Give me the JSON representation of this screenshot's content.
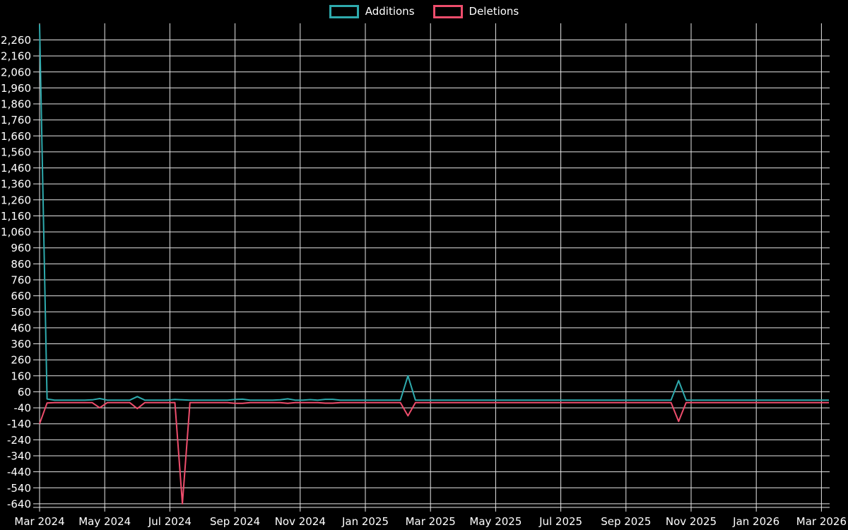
{
  "chart_data": {
    "type": "line",
    "title": "",
    "xlabel": "",
    "ylabel": "",
    "grid": true,
    "legend_position": "top-center",
    "legend": [
      {
        "label": "Additions",
        "color": "#2eaaad"
      },
      {
        "label": "Deletions",
        "color": "#ee4d6c"
      }
    ],
    "x_ticks": [
      "Mar 2024",
      "May 2024",
      "Jul 2024",
      "Sep 2024",
      "Nov 2024",
      "Jan 2025",
      "Mar 2025",
      "May 2025",
      "Jul 2025",
      "Sep 2025",
      "Nov 2025",
      "Jan 2026",
      "Mar 2026"
    ],
    "y_ticks": [
      2260,
      2160,
      2060,
      1960,
      1860,
      1760,
      1660,
      1560,
      1460,
      1360,
      1260,
      1160,
      1060,
      960,
      860,
      760,
      660,
      560,
      460,
      360,
      260,
      160,
      60,
      -40,
      -140,
      -240,
      -340,
      -440,
      -540,
      -640
    ],
    "ylim": [
      -640,
      2356
    ],
    "weeks_total": 105,
    "x_range_weeks_per_tick": 8.667,
    "series": [
      {
        "name": "Additions",
        "color": "#2eaaad",
        "baseline": 8,
        "points": [
          [
            0,
            2356
          ],
          [
            1,
            15
          ],
          [
            7,
            10
          ],
          [
            8,
            18
          ],
          [
            13,
            30
          ],
          [
            18,
            12
          ],
          [
            19,
            10
          ],
          [
            26,
            12
          ],
          [
            27,
            14
          ],
          [
            32,
            10
          ],
          [
            33,
            16
          ],
          [
            36,
            11
          ],
          [
            38,
            13
          ],
          [
            39,
            13
          ],
          [
            49,
            160
          ],
          [
            85,
            130
          ]
        ]
      },
      {
        "name": "Deletions",
        "color": "#ee4d6c",
        "baseline": -8,
        "points": [
          [
            0,
            -140
          ],
          [
            1,
            -10
          ],
          [
            8,
            -40
          ],
          [
            13,
            -45
          ],
          [
            19,
            -640
          ],
          [
            26,
            -12
          ],
          [
            27,
            -12
          ],
          [
            33,
            -12
          ],
          [
            38,
            -11
          ],
          [
            39,
            -11
          ],
          [
            49,
            -90
          ],
          [
            85,
            -125
          ]
        ]
      }
    ]
  }
}
